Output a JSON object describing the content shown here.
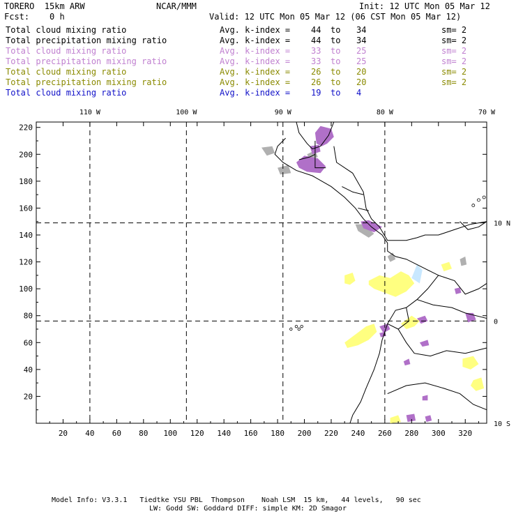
{
  "header": {
    "model": "TORERO  15km ARW",
    "org": "NCAR/MMM",
    "init": "Init: 12 UTC Mon 05 Mar 12",
    "fcst": "Fcst:    0 h",
    "valid": "Valid: 12 UTC Mon 05 Mar 12 (06 CST Mon 05 Mar 12)"
  },
  "legend": [
    {
      "field": "Total cloud mixing ratio",
      "kindex": "Avg. k-index =",
      "from": "44",
      "to_word": "to",
      "to": "34",
      "sm": "sm= 2",
      "color": "#000000"
    },
    {
      "field": "Total precipitation mixing ratio",
      "kindex": "Avg. k-index =",
      "from": "44",
      "to_word": "to",
      "to": "34",
      "sm": "sm= 2",
      "color": "#000000"
    },
    {
      "field": "Total cloud mixing ratio",
      "kindex": "Avg. k-index =",
      "from": "33",
      "to_word": "to",
      "to": "25",
      "sm": "sm= 2",
      "color": "#c080d0"
    },
    {
      "field": "Total precipitation mixing ratio",
      "kindex": "Avg. k-index =",
      "from": "33",
      "to_word": "to",
      "to": "25",
      "sm": "sm= 2",
      "color": "#c080d0"
    },
    {
      "field": "Total cloud mixing ratio",
      "kindex": "Avg. k-index =",
      "from": "26",
      "to_word": "to",
      "to": "20",
      "sm": "sm= 2",
      "color": "#8a8a00"
    },
    {
      "field": "Total precipitation mixing ratio",
      "kindex": "Avg. k-index =",
      "from": "26",
      "to_word": "to",
      "to": "20",
      "sm": "sm= 2",
      "color": "#8a8a00"
    },
    {
      "field": "Total cloud mixing ratio",
      "kindex": "Avg. k-index =",
      "from": "19",
      "to_word": "to",
      "to": "4",
      "sm": "",
      "color": "#1010c8"
    }
  ],
  "chart_data": {
    "type": "heatmap",
    "x_range": [
      0,
      336
    ],
    "y_range": [
      0,
      224
    ],
    "x_ticks": [
      20,
      40,
      60,
      80,
      100,
      120,
      140,
      160,
      180,
      200,
      220,
      240,
      260,
      280,
      300,
      320
    ],
    "y_ticks": [
      20,
      40,
      60,
      80,
      100,
      120,
      140,
      160,
      180,
      200,
      220
    ],
    "lon_labels": [
      {
        "label": "110 W",
        "x": 40
      },
      {
        "label": "100 W",
        "x": 112
      },
      {
        "label": "90 W",
        "x": 184
      },
      {
        "label": "80 W",
        "x": 260
      },
      {
        "label": "70 W",
        "x": 336
      }
    ],
    "lat_labels": [
      {
        "label": "10 N",
        "y": 149
      },
      {
        "label": "0",
        "y": 76
      },
      {
        "label": "10 S",
        "y": 0
      }
    ],
    "colors": {
      "gray": "#b0b0b0",
      "purple": "#b070c8",
      "lavender": "#c8a0d8",
      "yellow": "#ffff80",
      "lightblue": "#c8e8ff"
    }
  },
  "footer": {
    "line1": "Model Info: V3.3.1   Tiedtke YSU PBL  Thompson    Noah LSM  15 km,   44 levels,   90 sec",
    "line2": "LW: Godd SW: Goddard DIFF: simple KM: 2D Smagor"
  }
}
